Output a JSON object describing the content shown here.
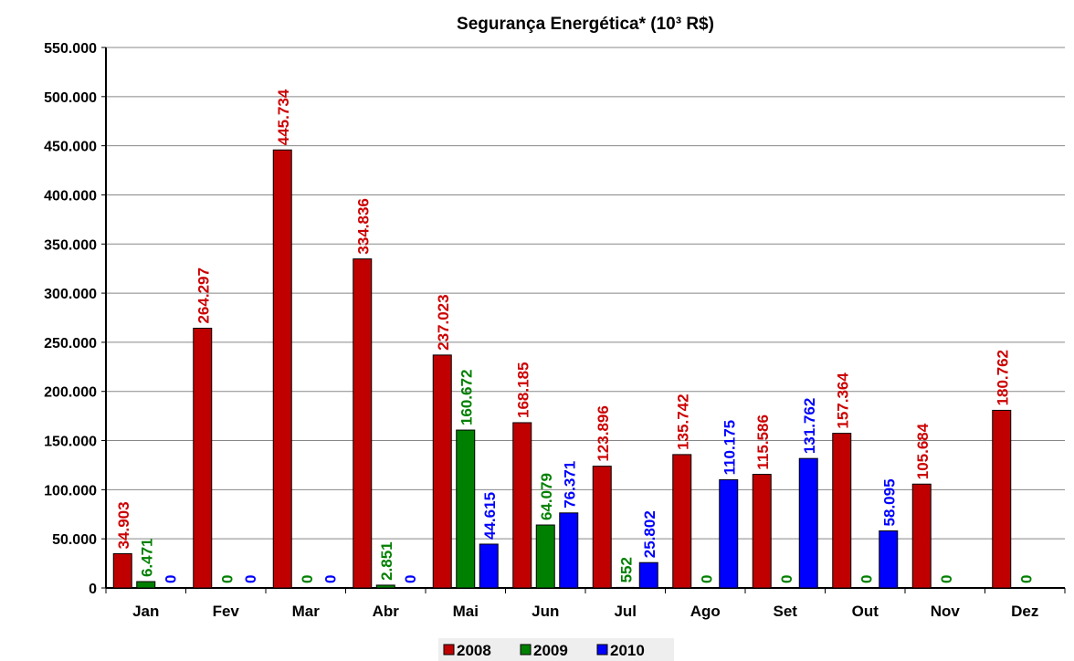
{
  "chart_data": {
    "type": "bar",
    "title": "Segurança Energética* (10³ R$)",
    "categories": [
      "Jan",
      "Fev",
      "Mar",
      "Abr",
      "Mai",
      "Jun",
      "Jul",
      "Ago",
      "Set",
      "Out",
      "Nov",
      "Dez"
    ],
    "series": [
      {
        "name": "2008",
        "color": "#c00000",
        "values": [
          34903,
          264297,
          445734,
          334836,
          237023,
          168185,
          123896,
          135742,
          115586,
          157364,
          105684,
          180762
        ],
        "value_labels": [
          "34.903",
          "264.297",
          "445.734",
          "334.836",
          "237.023",
          "168.185",
          "123.896",
          "135.742",
          "115.586",
          "157.364",
          "105.684",
          "180.762"
        ]
      },
      {
        "name": "2009",
        "color": "#008000",
        "values": [
          6471,
          0,
          0,
          2851,
          160672,
          64079,
          552,
          0,
          0,
          0,
          0,
          0
        ],
        "value_labels": [
          "6.471",
          "0",
          "0",
          "2.851",
          "160.672",
          "64.079",
          "552",
          "0",
          "0",
          "0",
          "0",
          "0"
        ]
      },
      {
        "name": "2010",
        "color": "#0000ff",
        "values": [
          0,
          0,
          0,
          0,
          44615,
          76371,
          25802,
          110175,
          131762,
          58095,
          null,
          null
        ],
        "value_labels": [
          "0",
          "0",
          "0",
          "0",
          "44.615",
          "76.371",
          "25.802",
          "110.175",
          "131.762",
          "58.095",
          null,
          null
        ]
      }
    ],
    "ylim": [
      0,
      550000
    ],
    "yticks": [
      0,
      {
        "value": 50000,
        "label": "50.000"
      },
      {
        "value": 100000,
        "label": "100.000"
      },
      {
        "value": 150000,
        "label": "150.000"
      },
      {
        "value": 200000,
        "label": "200.000"
      },
      {
        "value": 250000,
        "label": "250.000"
      },
      {
        "value": 300000,
        "label": "300.000"
      },
      {
        "value": 350000,
        "label": "350.000"
      },
      {
        "value": 400000,
        "label": "400.000"
      },
      {
        "value": 450000,
        "label": "450.000"
      },
      {
        "value": 500000,
        "label": "500.000"
      },
      {
        "value": 550000,
        "label": "550.000"
      }
    ],
    "grid": true,
    "legend": "bottom"
  }
}
